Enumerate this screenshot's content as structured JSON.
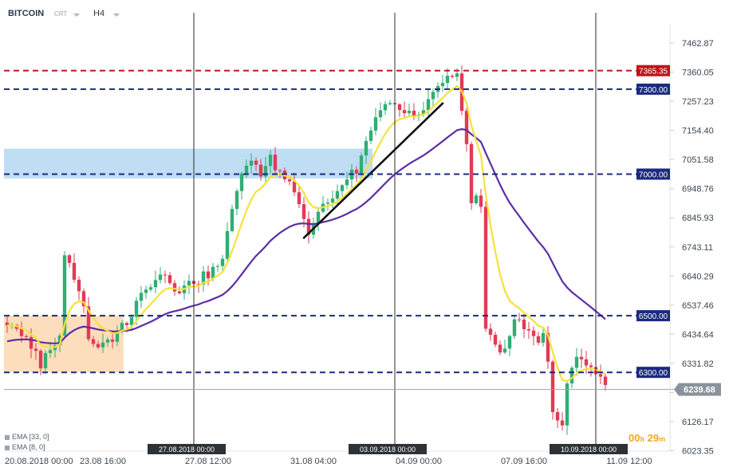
{
  "toolbar": {
    "symbol": "BITCOIN",
    "symbol_sub": "CRT",
    "timeframe": "H4"
  },
  "indicators": [
    {
      "label": "EMA [33, 0]",
      "color": "#5b2ea6"
    },
    {
      "label": "EMA [8, 0]",
      "color": "#f7e13a"
    }
  ],
  "timer": {
    "hours": "00",
    "h_unit": "h",
    "minutes": "29",
    "m_unit": "m"
  },
  "colors": {
    "bull": "#2fae74",
    "bear": "#e23a55",
    "resistance": "#c0131a",
    "level": "#1b2a80",
    "ema_fast": "#f7e13a",
    "ema_slow": "#5b2ea6",
    "supply_zone": "#a9d2ef",
    "demand_zone": "#fcd8b0",
    "price_label": "#8a939c"
  },
  "chart_data": {
    "type": "candlestick",
    "symbol": "BITCOIN",
    "timeframe": "H4",
    "y_range": [
      6023.35,
      7480
    ],
    "y_ticks": [
      7462.87,
      7360.05,
      7257.23,
      7154.4,
      7051.58,
      6948.76,
      6845.93,
      6743.11,
      6640.29,
      6537.46,
      6434.64,
      6331.82,
      6229.0,
      6126.17,
      6023.35
    ],
    "y_tick_labels": [
      "7462.87",
      "7360.05",
      "7257.23",
      "7154.40",
      "7051.58",
      "6948.76",
      "6845.93",
      "6743.11",
      "6640.29",
      "6537.46",
      "6434.64",
      "6331.82",
      "6229.00",
      "6126.17",
      "6023.35"
    ],
    "x_ticks": [
      {
        "index": 0,
        "label": "20.08.2018  00:00"
      },
      {
        "index": 20,
        "label": "23.08  16:00"
      },
      {
        "index": 42,
        "label": "27.08  12:00"
      },
      {
        "index": 64,
        "label": "31.08  04:00"
      },
      {
        "index": 86,
        "label": "04.09  00:00"
      },
      {
        "index": 108,
        "label": "07.09  16:00"
      },
      {
        "index": 130,
        "label": "11.09  12:00"
      }
    ],
    "vlines": [
      {
        "index": 39,
        "label": "27.08.2018 00:00"
      },
      {
        "index": 81,
        "label": "03.09.2018 00:00"
      },
      {
        "index": 123,
        "label": "10.09.2018 00:00"
      }
    ],
    "levels": [
      {
        "value": 7365.35,
        "label": "7365.35",
        "role": "resistance"
      },
      {
        "value": 7300.0,
        "label": "7300.00",
        "role": "level"
      },
      {
        "value": 7000.0,
        "label": "7000.00",
        "role": "level"
      },
      {
        "value": 6500.0,
        "label": "6500.00",
        "role": "level"
      },
      {
        "value": 6300.0,
        "label": "6300.00",
        "role": "level"
      }
    ],
    "current_price": {
      "value": 6239.68,
      "label": "6239.68"
    },
    "zones": [
      {
        "name": "supply",
        "i0": 0,
        "i1": 76,
        "y_low": 6985,
        "y_high": 7090
      },
      {
        "name": "demand",
        "i0": 0,
        "i1": 24,
        "y_low": 6300,
        "y_high": 6500
      }
    ],
    "trendline": {
      "i0": 62,
      "y0": 6775,
      "i1": 91,
      "y1": 7250
    },
    "anchors": [
      [
        0,
        6470
      ],
      [
        2,
        6440
      ],
      [
        5,
        6390
      ],
      [
        7,
        6330
      ],
      [
        9,
        6380
      ],
      [
        11,
        6430
      ],
      [
        12,
        6720
      ],
      [
        14,
        6640
      ],
      [
        16,
        6550
      ],
      [
        17,
        6420
      ],
      [
        19,
        6380
      ],
      [
        21,
        6410
      ],
      [
        24,
        6460
      ],
      [
        26,
        6510
      ],
      [
        29,
        6610
      ],
      [
        32,
        6640
      ],
      [
        36,
        6590
      ],
      [
        39,
        6620
      ],
      [
        42,
        6650
      ],
      [
        45,
        6690
      ],
      [
        47,
        6870
      ],
      [
        49,
        6990
      ],
      [
        51,
        7050
      ],
      [
        53,
        7010
      ],
      [
        55,
        7050
      ],
      [
        57,
        7000
      ],
      [
        59,
        6960
      ],
      [
        61,
        6890
      ],
      [
        63,
        6790
      ],
      [
        65,
        6860
      ],
      [
        67,
        6900
      ],
      [
        69,
        6940
      ],
      [
        71,
        6980
      ],
      [
        73,
        7020
      ],
      [
        75,
        7120
      ],
      [
        77,
        7200
      ],
      [
        79,
        7240
      ],
      [
        81,
        7260
      ],
      [
        83,
        7200
      ],
      [
        85,
        7220
      ],
      [
        87,
        7240
      ],
      [
        89,
        7280
      ],
      [
        91,
        7320
      ],
      [
        93,
        7360
      ],
      [
        94,
        7350
      ],
      [
        96,
        7120
      ],
      [
        97,
        6900
      ],
      [
        98,
        6920
      ],
      [
        99,
        6870
      ],
      [
        100,
        6440
      ],
      [
        102,
        6400
      ],
      [
        104,
        6380
      ],
      [
        106,
        6500
      ],
      [
        107,
        6470
      ],
      [
        109,
        6440
      ],
      [
        111,
        6420
      ],
      [
        112,
        6440
      ],
      [
        113,
        6340
      ],
      [
        114,
        6150
      ],
      [
        116,
        6130
      ],
      [
        117,
        6270
      ],
      [
        118,
        6300
      ],
      [
        119,
        6370
      ],
      [
        121,
        6340
      ],
      [
        123,
        6290
      ],
      [
        125,
        6240
      ]
    ],
    "candle_count": 126,
    "seed": 20180910
  }
}
